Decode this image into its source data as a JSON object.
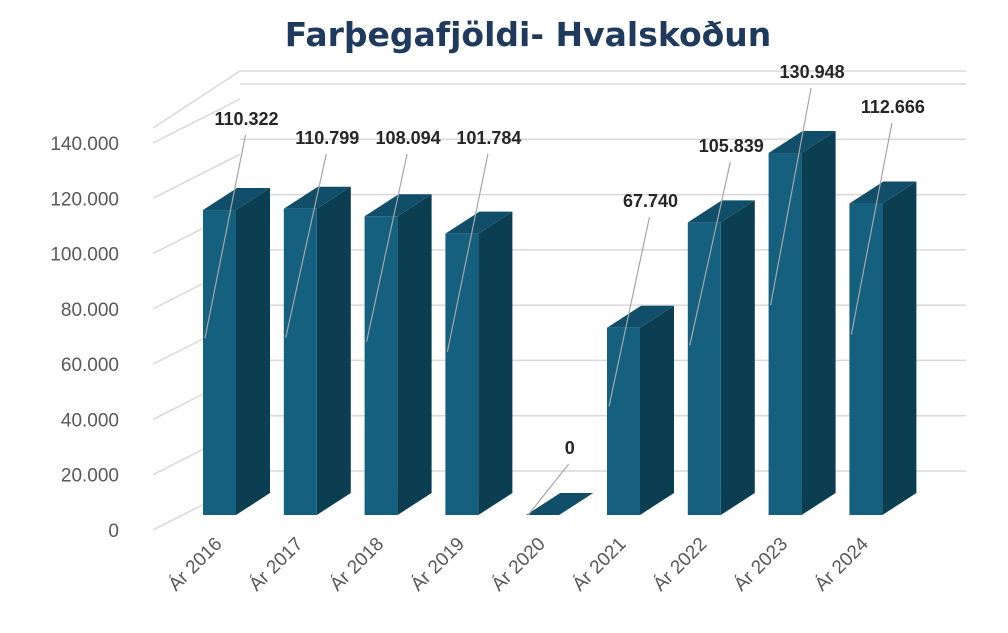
{
  "chart_data": {
    "type": "bar",
    "title": "Farþegafjöldi- Hvalskoðun",
    "categories": [
      "Ár 2016",
      "Ár 2017",
      "Ár 2018",
      "Ár 2019",
      "Ár 2020",
      "Ár 2021",
      "Ár 2022",
      "Ár 2023",
      "Ár 2024"
    ],
    "series": [
      {
        "values": [
          110322,
          110799,
          108094,
          101784,
          0,
          67740,
          105839,
          130948,
          112666
        ],
        "data_labels": [
          "110.322",
          "110.799",
          "108.094",
          "101.784",
          "0",
          "67.740",
          "105.839",
          "130.948",
          "112.666"
        ]
      }
    ],
    "ylim": [
      0,
      140000
    ],
    "yticks": [
      0,
      20000,
      40000,
      60000,
      80000,
      100000,
      120000,
      140000
    ],
    "ytick_labels": [
      "0",
      "20.000",
      "40.000",
      "60.000",
      "80.000",
      "100.000",
      "120.000",
      "140.000"
    ],
    "grid": true,
    "three_d": true,
    "colors": {
      "front": "#15607f",
      "side": "#0c3e52",
      "top": "#114e69",
      "grid": "#d9d9d9",
      "title": "#1f3a5c"
    }
  }
}
